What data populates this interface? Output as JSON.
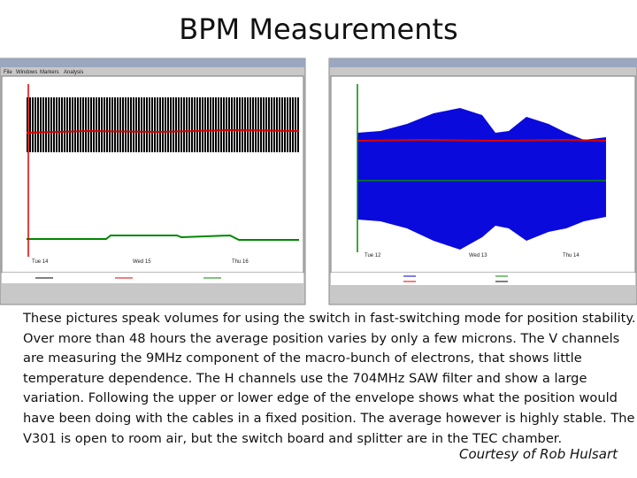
{
  "header": {
    "title": "BPM Measurements"
  },
  "screenshots": [
    {
      "menu": [
        "File",
        "Windows",
        "Markers",
        "Analysis"
      ],
      "x_labels": [
        "Tue 14",
        "Wed 15",
        "Thu 16"
      ]
    },
    {
      "x_labels": [
        "Tue 12",
        "Wed 13",
        "Thu 14"
      ]
    }
  ],
  "body": {
    "lines": [
      "These pictures speak volumes for using the switch in fast-switching mode for position stability.",
      "Over more than 48 hours the average position varies by only a few microns. The V channels",
      "are measuring the 9MHz component of the macro-bunch of electrons, that shows little",
      "temperature dependence. The H channels use the 704MHz SAW filter and show a large",
      "variation. Following the upper or lower edge of the envelope shows what the position would",
      "have been doing with the cables in a fixed position. The average however is highly stable. The",
      "V301 is open to room air, but the switch board and splitter are in the TEC chamber."
    ],
    "credit": "Courtesy of Rob Hulsart"
  }
}
